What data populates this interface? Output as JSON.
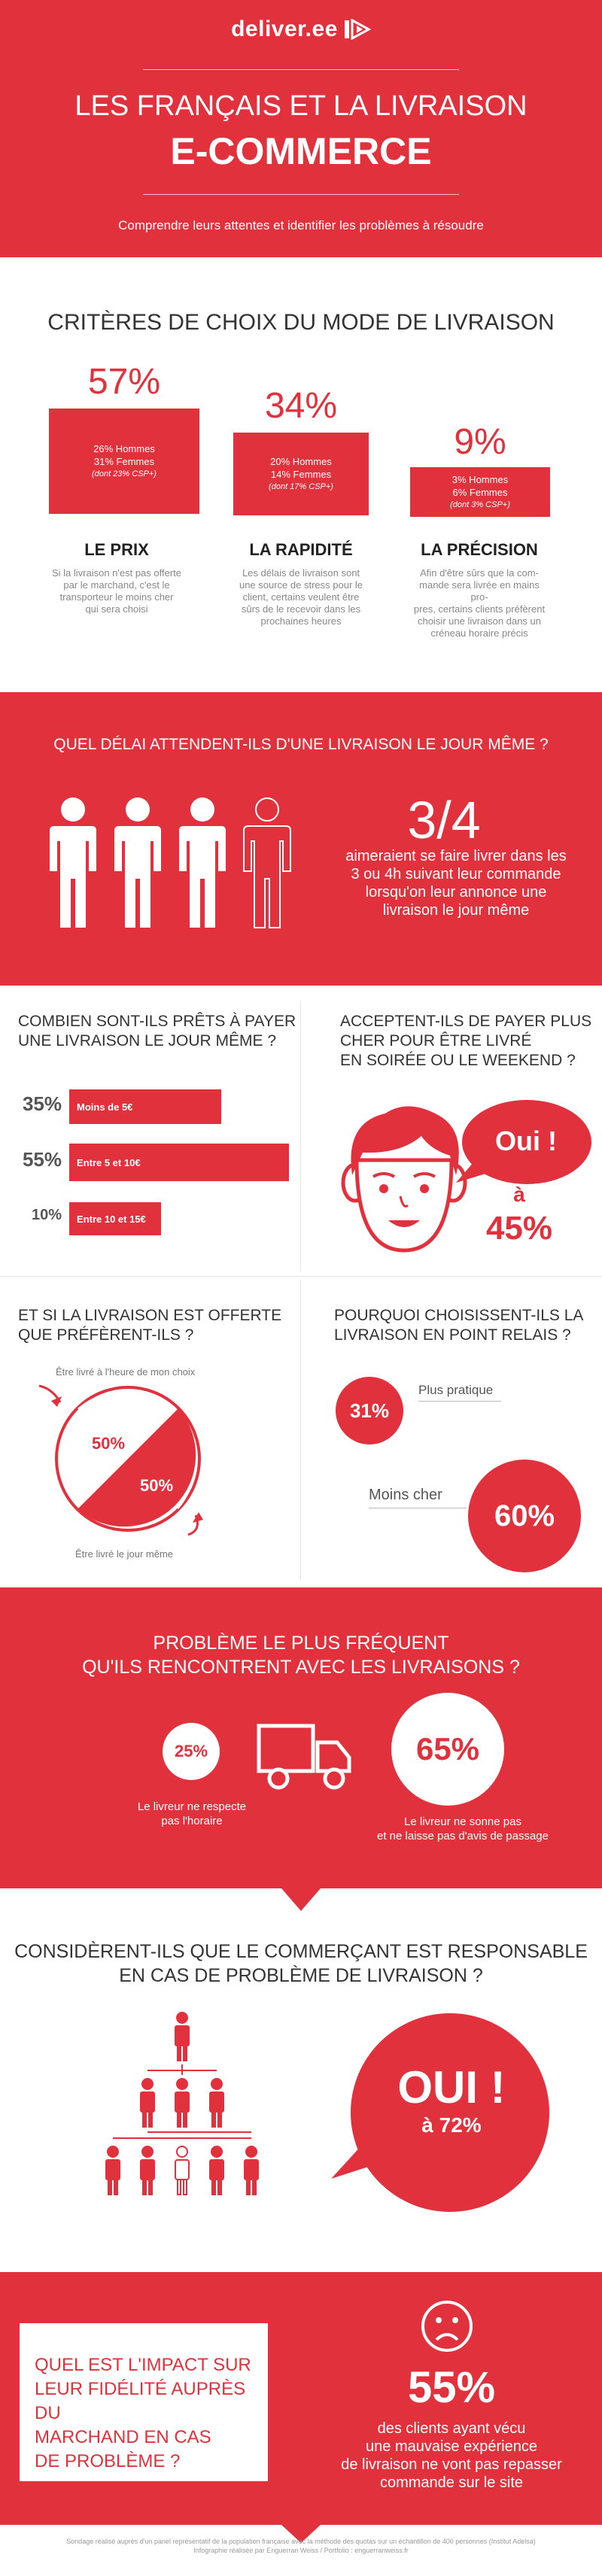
{
  "header": {
    "brand": "deliver.ee",
    "title_line1": "LES FRANÇAIS ET LA LIVRAISON",
    "title_line2": "E-COMMERCE",
    "subtitle": "Comprendre leurs attentes et identifier les problèmes à résoudre",
    "colors": {
      "accent": "#e1313d",
      "background": "#ffffff",
      "text": "#444444"
    }
  },
  "criteria": {
    "title": "CRITÈRES DE CHOIX DU MODE DE LIVRAISON",
    "items": [
      {
        "pct": "57%",
        "line1": "26% Hommes",
        "line2": "31% Femmes",
        "line3": "(dont 23% CSP+)",
        "name": "LE PRIX",
        "desc1": "Si la livraison n'est pas offerte",
        "desc2": "par le marchand, c'est le",
        "desc3": "transporteur le moins cher",
        "desc4": "qui sera choisi",
        "desc5": ""
      },
      {
        "pct": "34%",
        "line1": "20% Hommes",
        "line2": "14% Femmes",
        "line3": "(dont 17% CSP+)",
        "name": "LA RAPIDITÉ",
        "desc1": "Les délais de livraison sont",
        "desc2": "une source de stress pour le",
        "desc3": "client, certains veulent être",
        "desc4": "sûrs de le recevoir dans les",
        "desc5": "prochaines heures"
      },
      {
        "pct": "9%",
        "line1": "3% Hommes",
        "line2": "6% Femmes",
        "line3": "(dont 3% CSP+)",
        "name": "LA PRÉCISION",
        "desc1": "Afin d'être sûrs que la com-",
        "desc2": "mande sera livrée en mains pro-",
        "desc3": "pres, certains clients préfèrent",
        "desc4": "choisir une livraison dans un",
        "desc5": "créneau horaire précis"
      }
    ]
  },
  "sameday": {
    "title": "QUEL DÉLAI ATTENDENT-ILS D'UNE LIVRAISON LE JOUR MÊME ?",
    "fraction": "3/4",
    "fraction_value": 0.75,
    "text1": "aimeraient se faire livrer dans les",
    "text2": "3 ou 4h suivant leur commande",
    "text3": "lorsqu'on leur annonce une",
    "text4": "livraison le jour même"
  },
  "willing_to_pay": {
    "title1": "COMBIEN SONT-ILS PRÊTS À PAYER",
    "title2": "UNE LIVRAISON LE JOUR MÊME ?",
    "bars": [
      {
        "pct": "35%",
        "label": "Moins de 5€",
        "value": 35
      },
      {
        "pct": "55%",
        "label": "Entre 5 et 10€",
        "value": 55
      },
      {
        "pct": "10%",
        "label": "Entre 10 et 15€",
        "value": 10
      }
    ]
  },
  "evening": {
    "title1": "ACCEPTENT-ILS DE PAYER PLUS",
    "title2": "CHER POUR ÊTRE LIVRÉ",
    "title3": "EN SOIRÉE OU LE WEEKEND ?",
    "answer": "Oui !",
    "a": "à",
    "pct": "45%"
  },
  "free_delivery": {
    "title1": "ET SI LA LIVRAISON EST OFFERTE",
    "title2": "QUE PRÉFÈRENT-ILS ?",
    "top_label": "Être livré à l'heure de mon choix",
    "bottom_label": "Être livré le jour même",
    "left_pct": "50%",
    "right_pct": "50%"
  },
  "relay": {
    "title1": "POURQUOI CHOISISSENT-ILS LA",
    "title2": "LIVRAISON EN POINT RELAIS ?",
    "item1_pct": "31%",
    "item1_label": "Plus pratique",
    "item2_pct": "60%",
    "item2_label": "Moins cher"
  },
  "problem": {
    "title1": "PROBLÈME LE PLUS FRÉQUENT",
    "title2": "QU'ILS RENCONTRENT AVEC LES LIVRAISONS ?",
    "left_pct": "25%",
    "left_cap1": "Le livreur ne respecte",
    "left_cap2": "pas l'horaire",
    "right_pct": "65%",
    "right_cap1": "Le livreur ne sonne pas",
    "right_cap2": "et ne laisse pas d'avis de passage"
  },
  "responsible": {
    "title1": "CONSIDÈRENT-ILS QUE LE COMMERÇANT EST RESPONSABLE",
    "title2": "EN CAS DE PROBLÈME DE LIVRAISON ?",
    "answer": "OUI !",
    "pct": "à 72%"
  },
  "loyalty": {
    "q1": "QUEL EST L'IMPACT SUR",
    "q2": "LEUR FIDÉLITÉ AUPRÈS DU",
    "q3": "MARCHAND EN CAS",
    "q4": "DE PROBLÈME ?",
    "pct": "55%",
    "t1": "des clients ayant vécu",
    "t2": "une mauvaise expérience",
    "t3": "de livraison ne vont pas repasser",
    "t4": "commande sur le site"
  },
  "footer": {
    "line1": "Sondage réalisé auprès d'un panel représentatif de la population française avec la méthode des quotas sur un échantillon de 400 personnes (Institut Adelsa)",
    "line2": "Infographie réalisée par Enguerran Weiss / Portfolio : enguerranweiss.fr"
  }
}
